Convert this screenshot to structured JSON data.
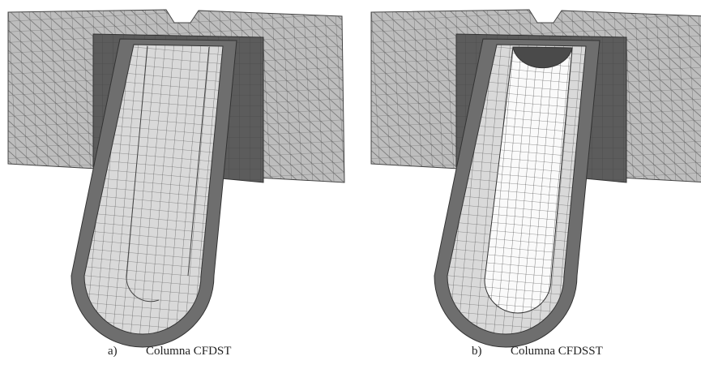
{
  "captions": [
    {
      "label": "a)",
      "text": "Columna CFDST"
    },
    {
      "label": "b)",
      "text": "Columna CFDSST"
    }
  ]
}
